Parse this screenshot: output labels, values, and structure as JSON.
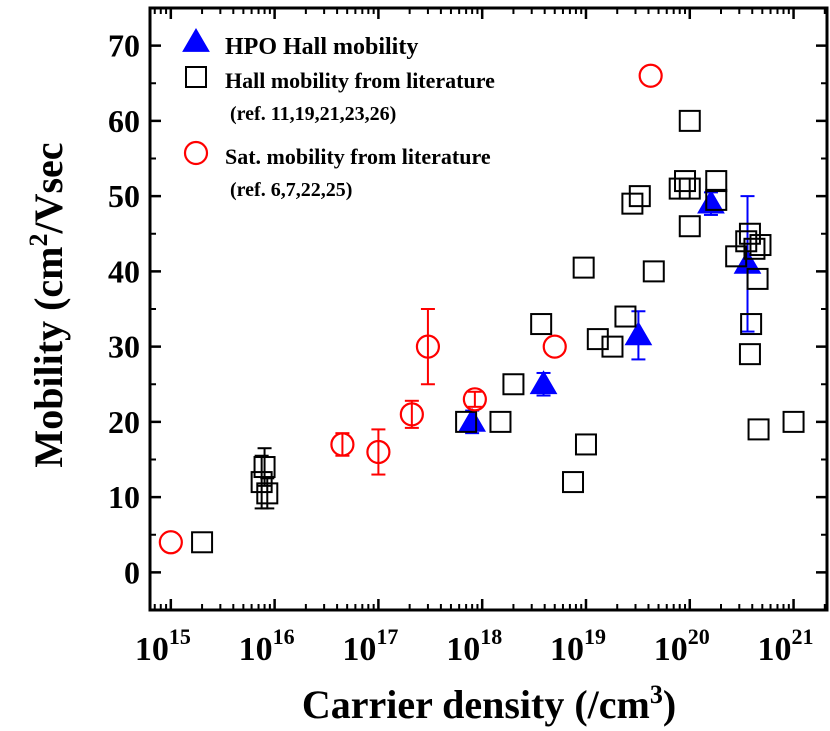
{
  "chart_data": {
    "type": "scatter",
    "title": "",
    "xlabel": {
      "prefix": "Carrier density (/cm",
      "sup": "3",
      "suffix": ")"
    },
    "ylabel": {
      "prefix": "Mobility (cm",
      "sup": "2",
      "suffix": "/Vsec"
    },
    "x_scale": "log",
    "xlim": [
      630000000000000.0,
      2.1e+21
    ],
    "ylim": [
      -5,
      75
    ],
    "x_ticks": [
      {
        "value": 1000000000000000.0,
        "base": "10",
        "exp": "15"
      },
      {
        "value": 1e+16,
        "base": "10",
        "exp": "16"
      },
      {
        "value": 1e+17,
        "base": "10",
        "exp": "17"
      },
      {
        "value": 1e+18,
        "base": "10",
        "exp": "18"
      },
      {
        "value": 1e+19,
        "base": "10",
        "exp": "19"
      },
      {
        "value": 1e+20,
        "base": "10",
        "exp": "20"
      },
      {
        "value": 1e+21,
        "base": "10",
        "exp": "21"
      }
    ],
    "y_ticks": [
      0,
      10,
      20,
      30,
      40,
      50,
      60,
      70
    ],
    "grid": false,
    "legend_position": "top-left",
    "series": [
      {
        "name": "HPO Hall mobility",
        "marker": "triangle",
        "color": "#0000ff",
        "filled": true,
        "points": [
          {
            "x": 8e+17,
            "y": 20,
            "err": 1.5
          },
          {
            "x": 3.9e+18,
            "y": 25,
            "err": 1.5
          },
          {
            "x": 3.2e+19,
            "y": 31.5,
            "err": 3.2
          },
          {
            "x": 1.6e+20,
            "y": 49,
            "err": 1.5
          },
          {
            "x": 3.6e+20,
            "y": 41,
            "err": 9
          }
        ]
      },
      {
        "name": "Hall mobility from literature",
        "note": "(ref. 11,19,21,23,26)",
        "marker": "square",
        "color": "#000000",
        "filled": false,
        "points": [
          {
            "x": 2000000000000000.0,
            "y": 4
          },
          {
            "x": 7500000000000000.0,
            "y": 12,
            "err": 3.5
          },
          {
            "x": 8000000000000000.0,
            "y": 14,
            "err": 2.5
          },
          {
            "x": 8500000000000000.0,
            "y": 10.5,
            "err": 2
          },
          {
            "x": 7e+17,
            "y": 20
          },
          {
            "x": 1.5e+18,
            "y": 20
          },
          {
            "x": 2e+18,
            "y": 25
          },
          {
            "x": 3.7e+18,
            "y": 33
          },
          {
            "x": 7.5e+18,
            "y": 12
          },
          {
            "x": 9.5e+18,
            "y": 40.5
          },
          {
            "x": 1e+19,
            "y": 17
          },
          {
            "x": 1.3e+19,
            "y": 31
          },
          {
            "x": 1.8e+19,
            "y": 30
          },
          {
            "x": 2.4e+19,
            "y": 34
          },
          {
            "x": 2.8e+19,
            "y": 49
          },
          {
            "x": 3.3e+19,
            "y": 50
          },
          {
            "x": 4.5e+19,
            "y": 40
          },
          {
            "x": 8e+19,
            "y": 51
          },
          {
            "x": 9e+19,
            "y": 52
          },
          {
            "x": 1e+20,
            "y": 51
          },
          {
            "x": 1e+20,
            "y": 60
          },
          {
            "x": 1e+20,
            "y": 46
          },
          {
            "x": 1.8e+20,
            "y": 52
          },
          {
            "x": 1.8e+20,
            "y": 49.5
          },
          {
            "x": 2.8e+20,
            "y": 42
          },
          {
            "x": 3.5e+20,
            "y": 44
          },
          {
            "x": 3.8e+20,
            "y": 45
          },
          {
            "x": 4.2e+20,
            "y": 43
          },
          {
            "x": 4.8e+20,
            "y": 43.5
          },
          {
            "x": 4.5e+20,
            "y": 39
          },
          {
            "x": 3.9e+20,
            "y": 33
          },
          {
            "x": 3.8e+20,
            "y": 29
          },
          {
            "x": 4.6e+20,
            "y": 19
          },
          {
            "x": 1e+21,
            "y": 20
          }
        ]
      },
      {
        "name": "Sat. mobility from literature",
        "note": "(ref. 6,7,22,25)",
        "marker": "circle",
        "color": "#ff0000",
        "filled": false,
        "points": [
          {
            "x": 1000000000000000.0,
            "y": 4
          },
          {
            "x": 4.5e+16,
            "y": 17,
            "err": 1.5
          },
          {
            "x": 1e+17,
            "y": 16,
            "err": 3
          },
          {
            "x": 2.1e+17,
            "y": 21,
            "err": 1.8
          },
          {
            "x": 3e+17,
            "y": 30,
            "err": 5
          },
          {
            "x": 8.5e+17,
            "y": 23,
            "err": 1
          },
          {
            "x": 5e+18,
            "y": 30
          },
          {
            "x": 4.2e+19,
            "y": 66
          }
        ]
      }
    ]
  }
}
